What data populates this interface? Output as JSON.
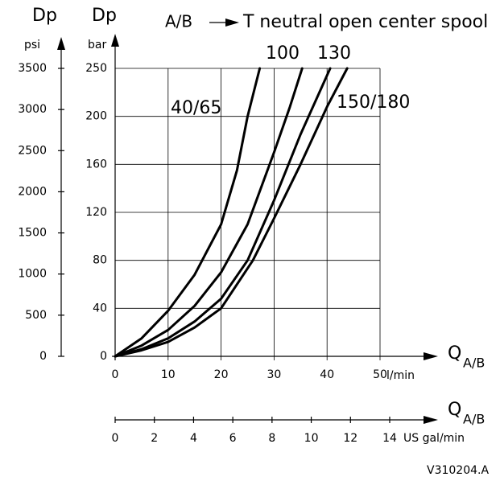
{
  "chart_data": {
    "type": "line",
    "title": "T neutral open center spool",
    "title_prefix": "A/B",
    "y_label": "Dp",
    "y_unit": "bar",
    "y2_label": "Dp",
    "y2_unit": "psi",
    "x_label": "Q",
    "x_label_sub": "A/B",
    "x_unit": "l/min",
    "x2_label": "Q",
    "x2_label_sub": "A/B",
    "x2_unit": "US gal/min",
    "footnote": "V310204.A",
    "xlim": [
      0,
      50
    ],
    "xticks": [
      0,
      10,
      20,
      30,
      40,
      50
    ],
    "ylim": [
      0,
      250
    ],
    "yticks": [
      0,
      40,
      80,
      120,
      160,
      200,
      250
    ],
    "y2lim": [
      0,
      3500
    ],
    "y2ticks": [
      0,
      500,
      1000,
      1500,
      2000,
      2500,
      3000,
      3500
    ],
    "x2lim": [
      0,
      14
    ],
    "x2ticks": [
      0,
      2,
      4,
      6,
      8,
      10,
      12,
      14
    ],
    "grid": true,
    "series": [
      {
        "name": "40/65",
        "color": "#000000",
        "x": [
          0,
          5,
          10,
          15,
          20,
          23,
          25,
          27.3
        ],
        "values": [
          0,
          15,
          38,
          68,
          110,
          155,
          200,
          250
        ]
      },
      {
        "name": "100",
        "color": "#000000",
        "x": [
          0,
          5,
          10,
          15,
          20,
          25,
          30,
          33,
          35.3
        ],
        "values": [
          0,
          9,
          22,
          42,
          70,
          110,
          170,
          210,
          250
        ]
      },
      {
        "name": "130",
        "color": "#000000",
        "x": [
          0,
          5,
          10,
          15,
          20,
          25,
          30,
          35,
          40.6
        ],
        "values": [
          0,
          6,
          15,
          29,
          48,
          80,
          130,
          185,
          250
        ]
      },
      {
        "name": "150/180",
        "color": "#000000",
        "x": [
          0,
          5,
          10,
          15,
          20,
          26,
          30,
          35,
          40,
          43.8
        ],
        "values": [
          0,
          5,
          12,
          24,
          40,
          80,
          115,
          160,
          210,
          250
        ]
      }
    ]
  }
}
